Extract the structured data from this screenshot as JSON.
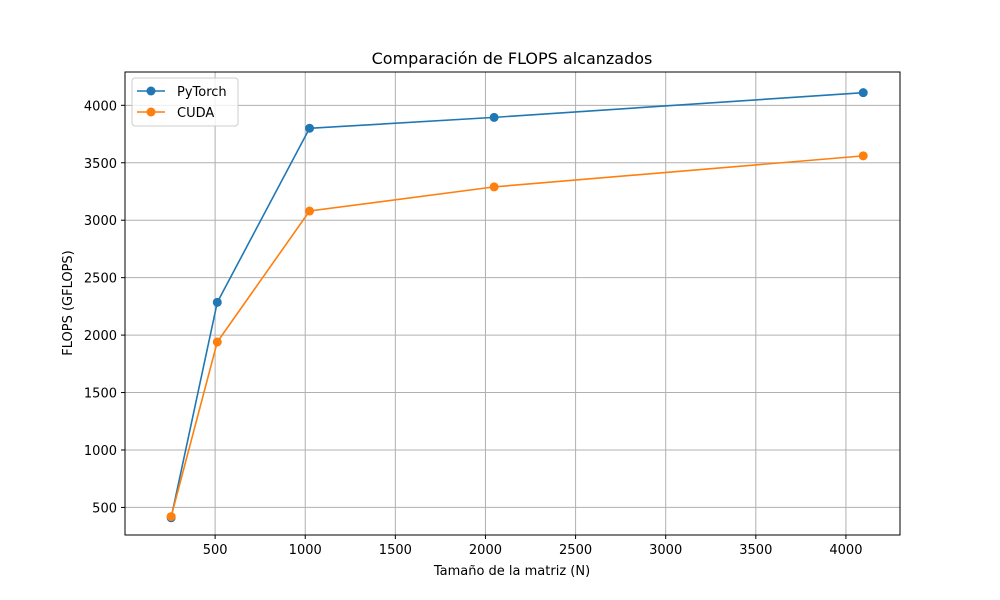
{
  "chart_data": {
    "type": "line",
    "title": "Comparación de FLOPS alcanzados",
    "xlabel": "Tamaño de la matriz (N)",
    "ylabel": "FLOPS (GFLOPS)",
    "x": [
      256,
      512,
      1024,
      2048,
      4096
    ],
    "xlim": [
      0,
      4300
    ],
    "ylim": [
      260,
      4290
    ],
    "xticks": [
      500,
      1000,
      1500,
      2000,
      2500,
      3000,
      3500,
      4000
    ],
    "yticks": [
      500,
      1000,
      1500,
      2000,
      2500,
      3000,
      3500,
      4000
    ],
    "grid": true,
    "legend_position": "top-left",
    "series": [
      {
        "name": "PyTorch",
        "color": "#1f77b4",
        "values": [
          410,
          2285,
          3800,
          3895,
          4110
        ]
      },
      {
        "name": "CUDA",
        "color": "#ff7f0e",
        "values": [
          420,
          1940,
          3080,
          3290,
          3560
        ]
      }
    ]
  }
}
